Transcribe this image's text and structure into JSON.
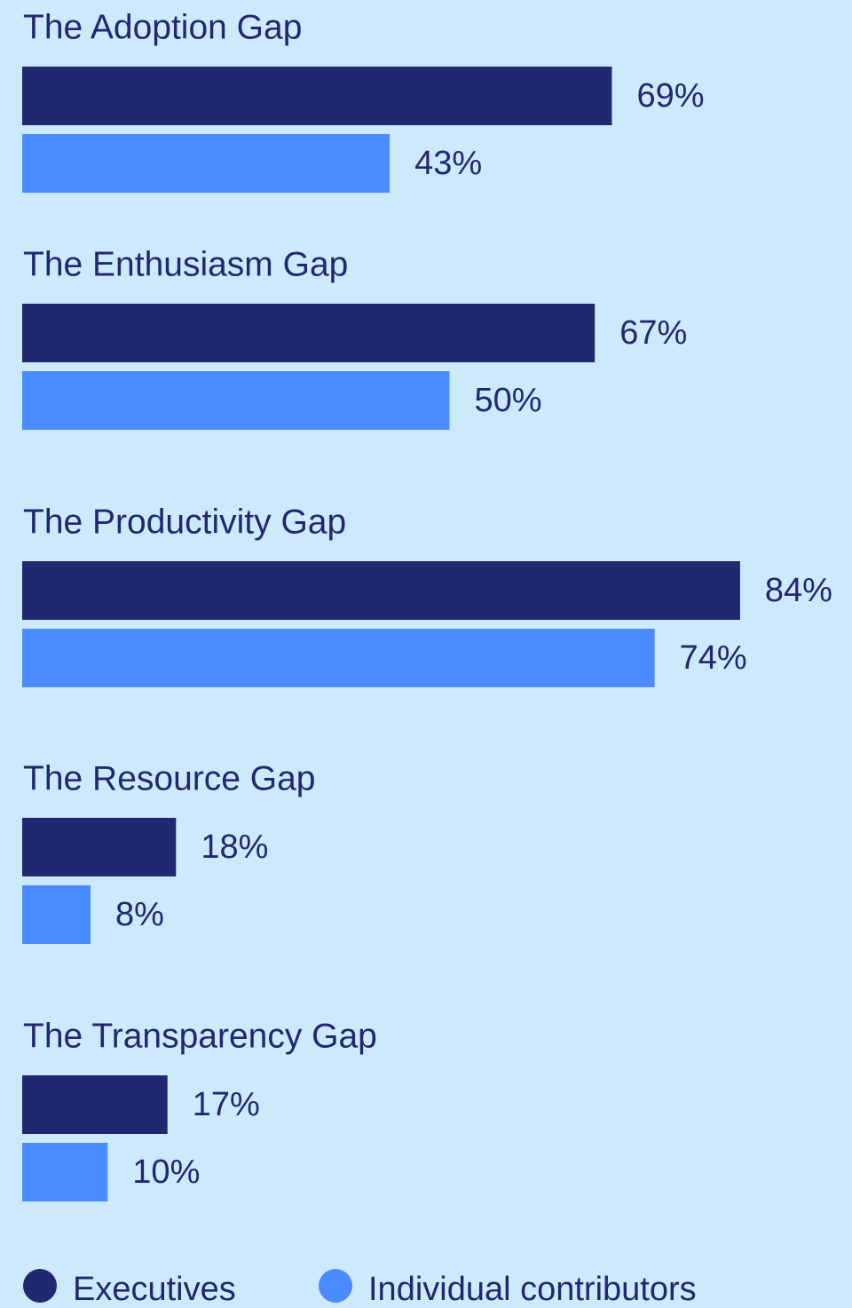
{
  "chart_data": {
    "type": "bar",
    "orientation": "horizontal",
    "categories": [
      "The Adoption Gap",
      "The Enthusiasm Gap",
      "The Productivity Gap",
      "The Resource Gap",
      "The Transparency Gap"
    ],
    "series": [
      {
        "name": "Executives",
        "color": "#212870",
        "values": [
          69,
          67,
          84,
          18,
          17
        ],
        "value_labels": [
          "69%",
          "67%",
          "84%",
          "18%",
          "17%"
        ]
      },
      {
        "name": "Individual contributors",
        "color": "#4a8bff",
        "values": [
          43,
          50,
          74,
          8,
          10
        ],
        "value_labels": [
          "43%",
          "50%",
          "74%",
          "8%",
          "10%"
        ]
      }
    ],
    "legend": "bottom-left"
  }
}
